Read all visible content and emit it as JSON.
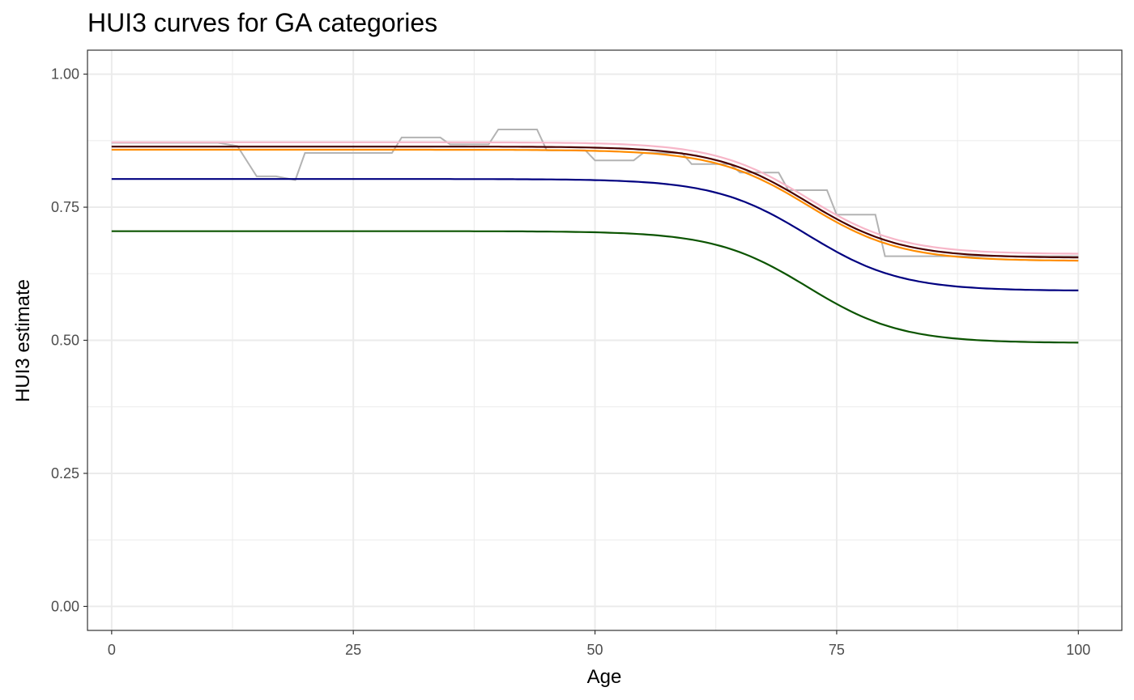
{
  "chart_data": {
    "type": "line",
    "title": "HUI3 curves for GA categories",
    "xlabel": "Age",
    "ylabel": "HUI3 estimate",
    "xlim": [
      -2.5,
      104.5
    ],
    "ylim": [
      -0.045,
      1.045
    ],
    "x_ticks": [
      0,
      25,
      50,
      75,
      100
    ],
    "x_tick_labels": [
      "0",
      "25",
      "50",
      "75",
      "100"
    ],
    "y_ticks": [
      0,
      0.25,
      0.5,
      0.75,
      1.0
    ],
    "y_tick_labels": [
      "0.00",
      "0.25",
      "0.50",
      "0.75",
      "1.00"
    ],
    "grid": true,
    "legend": "none",
    "logistic_series": [
      {
        "color": "#f7b6c8",
        "start": 0.872,
        "end": 0.662,
        "midpoint": 72,
        "scale": 4.8
      },
      {
        "color": "#ff8c00",
        "start": 0.858,
        "end": 0.649,
        "midpoint": 72,
        "scale": 4.8
      },
      {
        "color": "#4a0000",
        "start": 0.864,
        "end": 0.655,
        "midpoint": 72,
        "scale": 4.8
      },
      {
        "color": "#000080",
        "start": 0.803,
        "end": 0.593,
        "midpoint": 72,
        "scale": 4.8
      },
      {
        "color": "#0b5400",
        "start": 0.705,
        "end": 0.495,
        "midpoint": 72,
        "scale": 4.8
      }
    ],
    "step_series": {
      "color": "#b3b3b3",
      "x": [
        0,
        11,
        13,
        15,
        17,
        19,
        20,
        29,
        30,
        34,
        35,
        39,
        40,
        44,
        45,
        49,
        50,
        54,
        55,
        59,
        60,
        64,
        65,
        69,
        70,
        74,
        75,
        79,
        80,
        100
      ],
      "y": [
        0.871,
        0.871,
        0.865,
        0.808,
        0.808,
        0.801,
        0.852,
        0.852,
        0.881,
        0.881,
        0.868,
        0.868,
        0.896,
        0.896,
        0.857,
        0.857,
        0.838,
        0.838,
        0.852,
        0.852,
        0.831,
        0.831,
        0.815,
        0.815,
        0.782,
        0.782,
        0.736,
        0.736,
        0.658,
        0.658
      ]
    }
  }
}
